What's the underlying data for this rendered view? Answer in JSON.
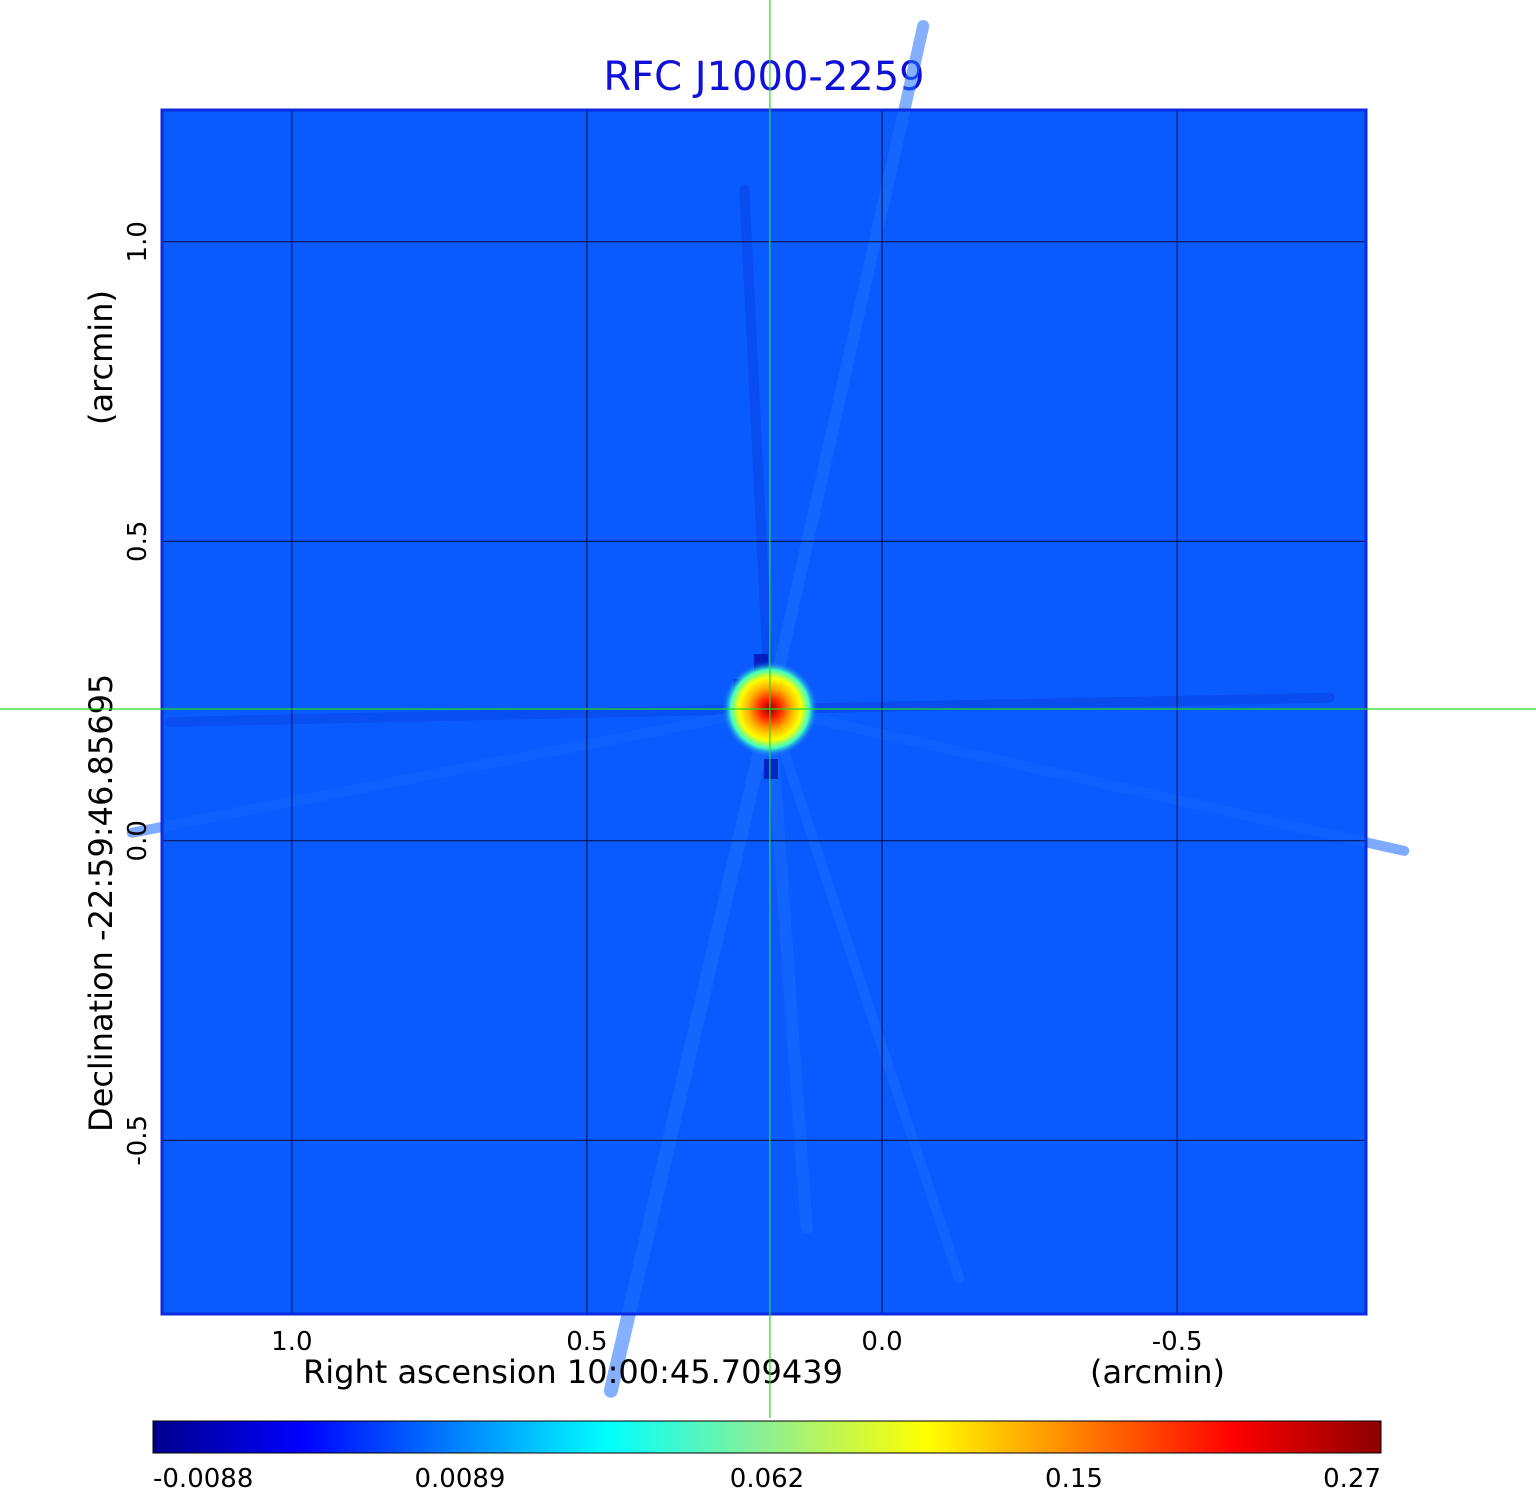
{
  "chart_data": {
    "type": "heatmap",
    "title": "RFC J1000-2259",
    "x_axis": {
      "label": "Right ascension  10:00:45.709439",
      "unit_label": "(arcmin)",
      "ticks": [
        1.0,
        0.5,
        0.0,
        -0.5
      ],
      "tick_labels": [
        "1.0",
        "0.5",
        "0.0",
        "-0.5"
      ],
      "range": [
        1.22,
        -0.82
      ]
    },
    "y_axis": {
      "label": "Declination  -22:59:46.85695",
      "unit_label": "(arcmin)",
      "ticks": [
        1.0,
        0.5,
        0.0,
        -0.5
      ],
      "tick_labels": [
        "1.0",
        "0.5",
        "0.0",
        "-0.5"
      ],
      "range": [
        -0.79,
        1.22
      ]
    },
    "grid": true,
    "crosshair": {
      "x": 0.19,
      "y": 0.22,
      "color": "#22dd22"
    },
    "source": {
      "x": 0.19,
      "y": 0.22,
      "peak": 0.27
    },
    "background_color": "#0a5bff",
    "colorbar": {
      "orientation": "horizontal",
      "placement": "bottom",
      "tick_labels": [
        "-0.0088",
        "0.0089",
        "0.062",
        "0.15",
        "0.27"
      ],
      "colors": [
        "#00008b",
        "#0000ff",
        "#00ffff",
        "#ffff00",
        "#ff0000",
        "#8b0000"
      ]
    }
  }
}
